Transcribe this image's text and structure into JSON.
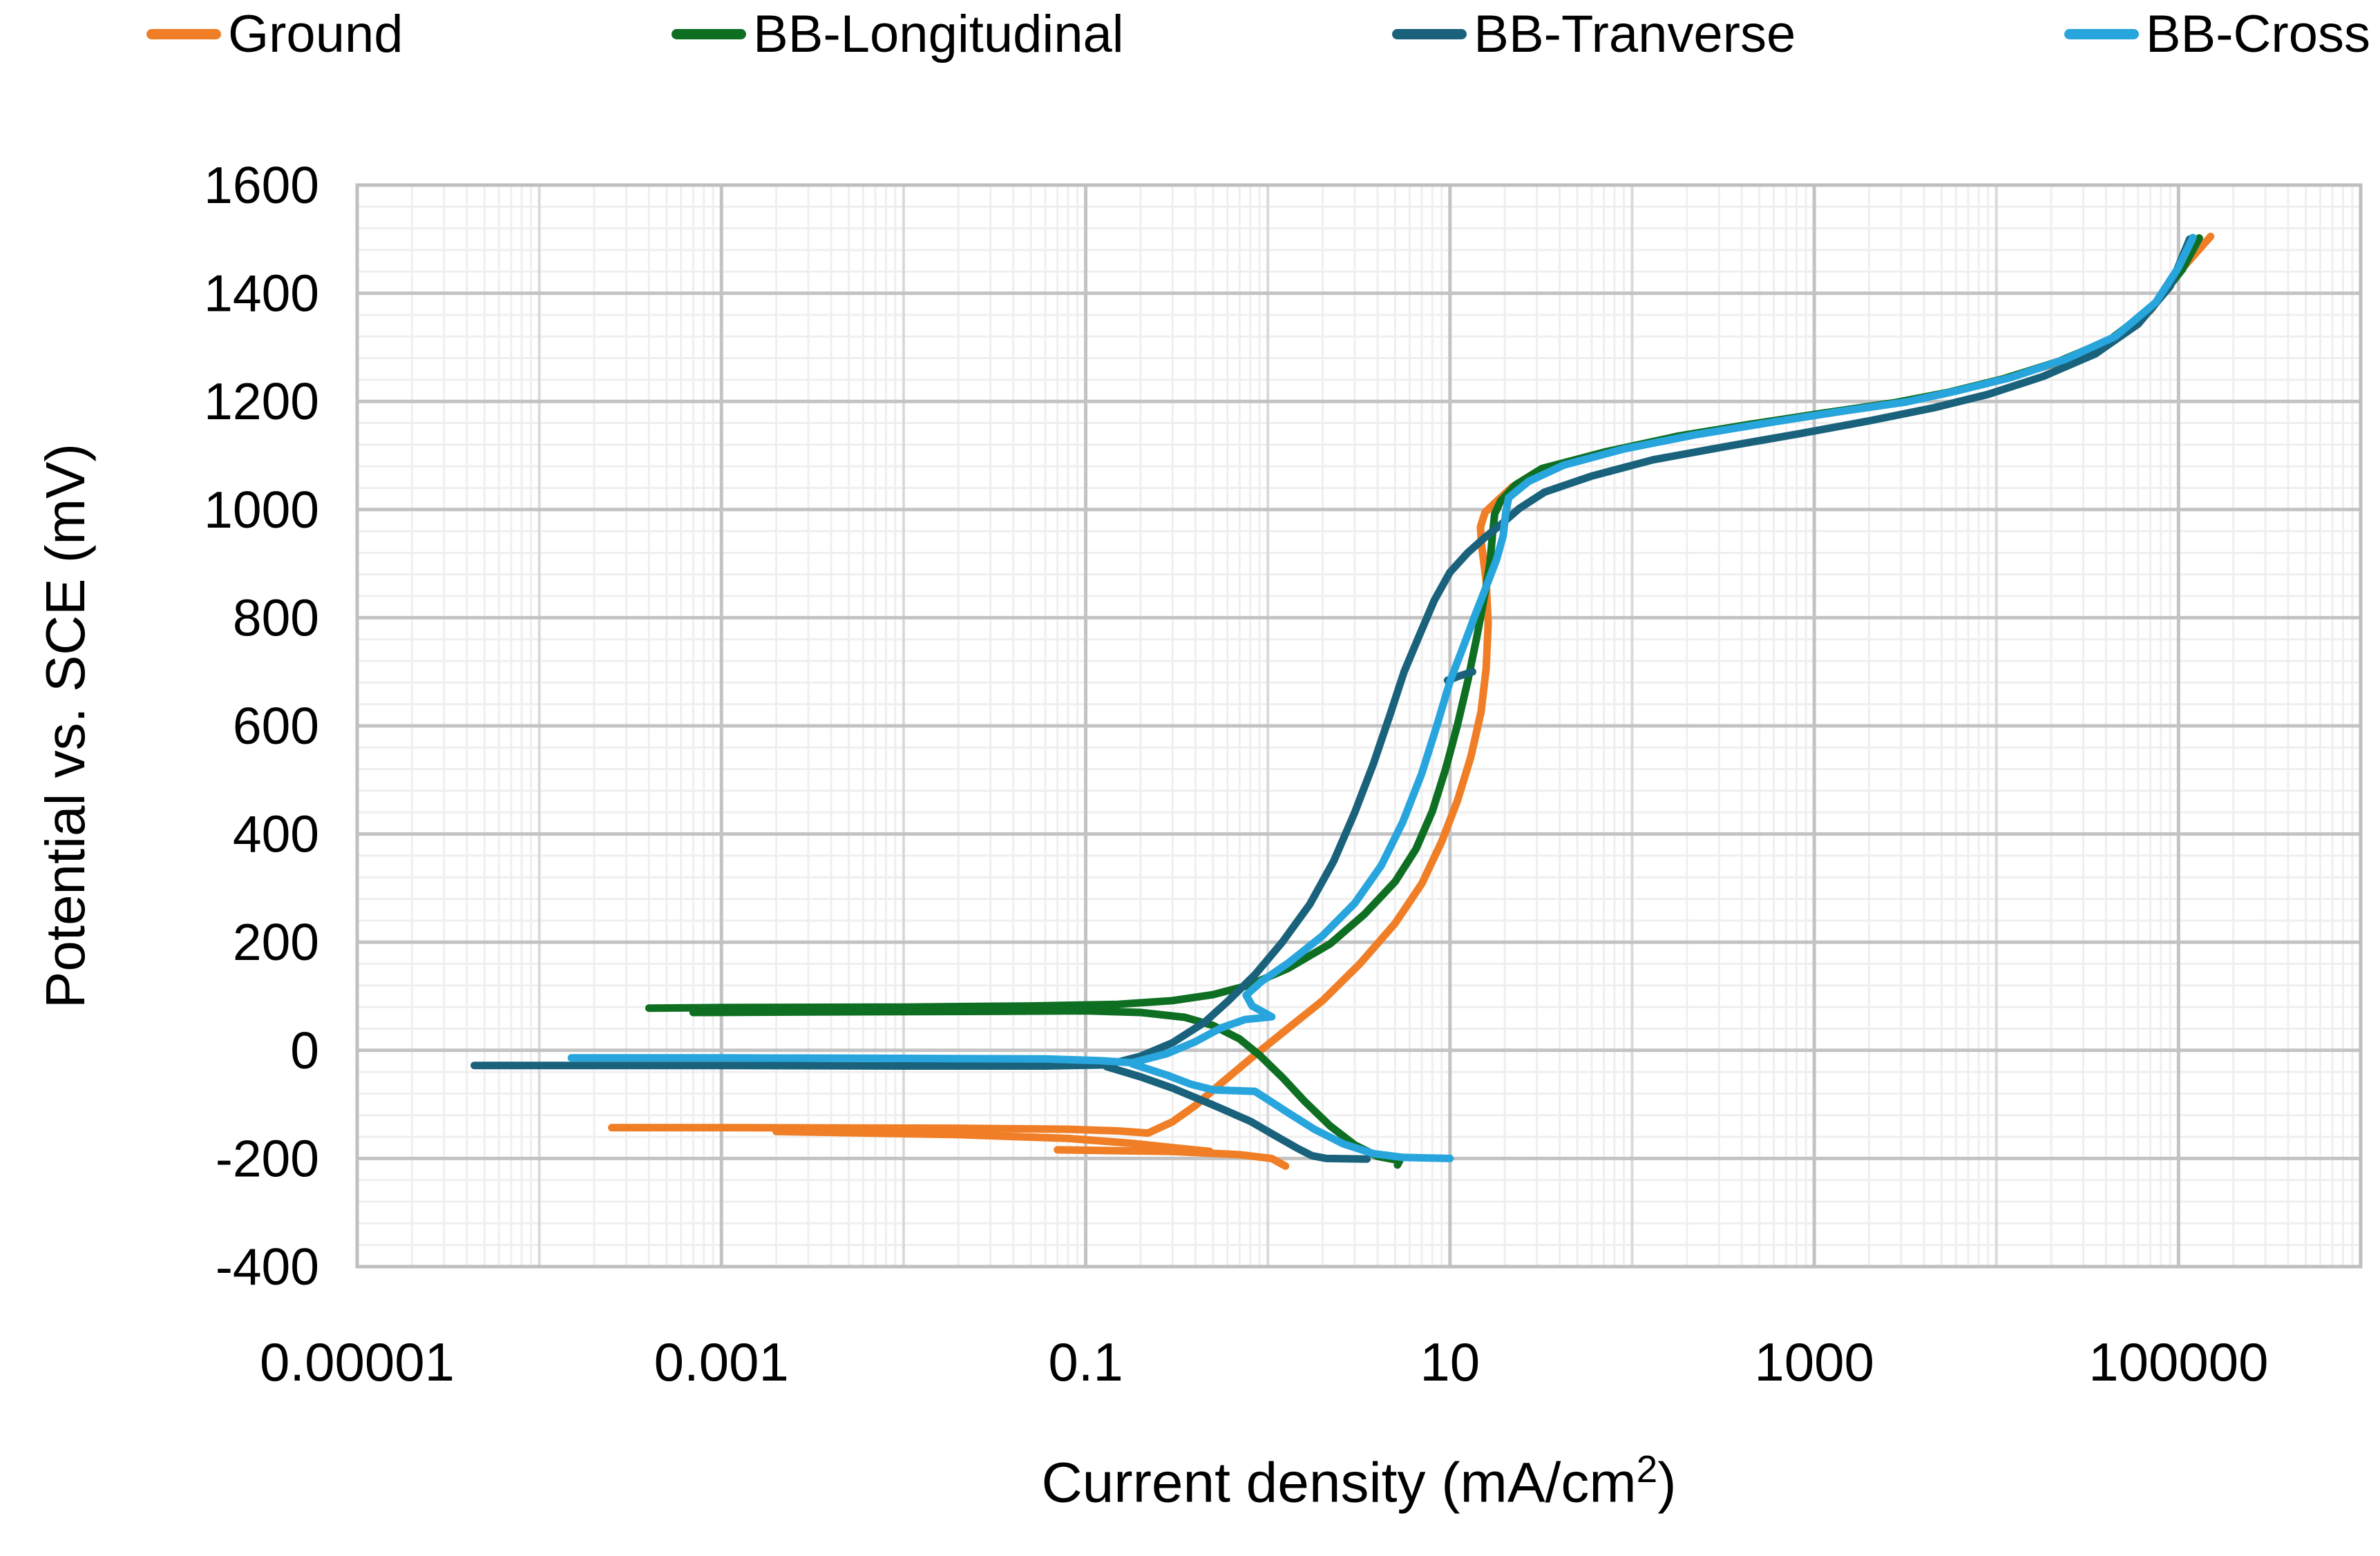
{
  "legend": {
    "items": [
      {
        "label": "Ground",
        "color": "#F07E26"
      },
      {
        "label": "BB-Longitudinal",
        "color": "#0E6F22"
      },
      {
        "label": "BB-Tranverse",
        "color": "#1A627C"
      },
      {
        "label": "BB-Cross",
        "color": "#27A5DC"
      }
    ]
  },
  "axes": {
    "y_title": "Potential vs. SCE (mV)",
    "x_title_main": "Current density (mA/cm",
    "x_title_sup": "2",
    "x_title_close": ")"
  },
  "chart_data": {
    "type": "line",
    "title": "",
    "xlabel": "Current density (mA/cm2)",
    "ylabel": "Potential vs. SCE (mV)",
    "x_axis": {
      "scale": "log",
      "min": 1e-05,
      "max": 1000000.0,
      "tick_values": [
        1e-05,
        0.001,
        0.1,
        10,
        1000,
        100000
      ],
      "tick_labels": [
        "0.00001",
        "0.001",
        "0.1",
        "10",
        "1000",
        "100000"
      ]
    },
    "y_axis": {
      "min": -400,
      "max": 1600,
      "major": 200,
      "minor": 40,
      "tick_labels": [
        "1600",
        "1400",
        "1200",
        "1000",
        "800",
        "600",
        "400",
        "200",
        "0",
        "-200",
        "-400"
      ]
    },
    "grid": {
      "major_color": "#C3C3C3",
      "mid_color": "#D9D9D9",
      "minor_color": "#EFEFEF",
      "border_color": "#BFBFBF"
    },
    "legend_position": "top",
    "series": [
      {
        "name": "Ground",
        "color": "#F07E26",
        "paths": [
          [
            [
              0.00025,
              -143
            ],
            [
              0.001,
              -143
            ],
            [
              0.02,
              -144
            ],
            [
              0.08,
              -146
            ],
            [
              0.15,
              -149
            ],
            [
              0.22,
              -153
            ],
            [
              0.3,
              -132
            ],
            [
              0.4,
              -102
            ],
            [
              0.55,
              -62
            ],
            [
              0.8,
              -16
            ],
            [
              1.2,
              32
            ],
            [
              2,
              92
            ],
            [
              3.2,
              160
            ],
            [
              5,
              235
            ],
            [
              7,
              308
            ],
            [
              9,
              386
            ],
            [
              11,
              462
            ],
            [
              13,
              542
            ],
            [
              14.8,
              625
            ],
            [
              15.8,
              706
            ],
            [
              16.2,
              790
            ],
            [
              15.8,
              868
            ],
            [
              14.9,
              935
            ],
            [
              14.7,
              968
            ],
            [
              15.6,
              995
            ],
            [
              18,
              1015
            ],
            [
              22,
              1042
            ],
            [
              30,
              1070
            ],
            [
              60,
              1100
            ],
            [
              150,
              1130
            ],
            [
              400,
              1154
            ],
            [
              1000,
              1174
            ],
            [
              2500,
              1194
            ],
            [
              5000,
              1213
            ],
            [
              10000,
              1238
            ],
            [
              20000,
              1268
            ],
            [
              40000,
              1308
            ],
            [
              70000,
              1368
            ],
            [
              100000,
              1438
            ],
            [
              150000,
              1505
            ]
          ],
          [
            [
              0.002,
              -150
            ],
            [
              0.02,
              -156
            ],
            [
              0.08,
              -163
            ],
            [
              0.18,
              -172
            ],
            [
              0.32,
              -181
            ],
            [
              0.48,
              -187
            ]
          ],
          [
            [
              0.07,
              -184
            ],
            [
              0.3,
              -187
            ],
            [
              0.7,
              -193
            ],
            [
              1.05,
              -200
            ],
            [
              1.25,
              -214
            ]
          ]
        ]
      },
      {
        "name": "BB-Longitudinal",
        "color": "#0E6F22",
        "paths": [
          [
            [
              0.0004,
              78
            ],
            [
              0.001,
              79
            ],
            [
              0.01,
              80
            ],
            [
              0.05,
              82
            ],
            [
              0.15,
              85
            ],
            [
              0.3,
              92
            ],
            [
              0.5,
              103
            ],
            [
              0.8,
              121
            ],
            [
              1.3,
              152
            ],
            [
              2.2,
              197
            ],
            [
              3.4,
              252
            ],
            [
              5,
              312
            ],
            [
              6.5,
              372
            ],
            [
              8,
              442
            ],
            [
              9.5,
              522
            ],
            [
              11,
              602
            ],
            [
              12.5,
              682
            ],
            [
              14,
              762
            ],
            [
              15.5,
              842
            ],
            [
              16.6,
              902
            ],
            [
              17.1,
              952
            ],
            [
              17.6,
              992
            ],
            [
              19,
              1016
            ],
            [
              23,
              1046
            ],
            [
              32,
              1076
            ],
            [
              70,
              1106
            ],
            [
              180,
              1136
            ],
            [
              450,
              1158
            ],
            [
              1100,
              1178
            ],
            [
              2800,
              1198
            ],
            [
              5500,
              1217
            ],
            [
              11000,
              1242
            ],
            [
              22000,
              1274
            ],
            [
              42000,
              1314
            ],
            [
              72000,
              1374
            ],
            [
              105000,
              1444
            ],
            [
              130000,
              1502
            ]
          ],
          [
            [
              0.0007,
              70
            ],
            [
              0.003,
              71
            ],
            [
              0.03,
              72
            ],
            [
              0.1,
              73
            ],
            [
              0.2,
              70
            ],
            [
              0.35,
              61
            ],
            [
              0.5,
              46
            ],
            [
              0.7,
              21
            ],
            [
              0.9,
              -9
            ],
            [
              1.2,
              -50
            ],
            [
              1.6,
              -95
            ],
            [
              2.2,
              -140
            ],
            [
              3,
              -175
            ],
            [
              4,
              -196
            ],
            [
              5.3,
              -204
            ],
            [
              5.15,
              -212
            ]
          ]
        ]
      },
      {
        "name": "BB-Tranverse",
        "color": "#1A627C",
        "paths": [
          [
            [
              4.4e-05,
              -28
            ],
            [
              0.001,
              -28
            ],
            [
              0.01,
              -29
            ],
            [
              0.06,
              -29
            ],
            [
              0.13,
              -27
            ],
            [
              0.2,
              -11
            ],
            [
              0.3,
              14
            ],
            [
              0.45,
              52
            ],
            [
              0.6,
              90
            ],
            [
              0.85,
              140
            ],
            [
              1.2,
              200
            ],
            [
              1.7,
              270
            ],
            [
              2.3,
              350
            ],
            [
              3,
              440
            ],
            [
              3.8,
              530
            ],
            [
              4.7,
              622
            ],
            [
              5.6,
              700
            ],
            [
              6.8,
              768
            ],
            [
              8.2,
              832
            ],
            [
              10,
              884
            ],
            [
              12.5,
              920
            ],
            [
              15.5,
              948
            ],
            [
              19,
              972
            ],
            [
              24,
              1002
            ],
            [
              33,
              1032
            ],
            [
              60,
              1062
            ],
            [
              130,
              1092
            ],
            [
              320,
              1116
            ],
            [
              820,
              1140
            ],
            [
              2000,
              1164
            ],
            [
              4500,
              1188
            ],
            [
              9000,
              1213
            ],
            [
              18000,
              1246
            ],
            [
              35000,
              1288
            ],
            [
              60000,
              1343
            ],
            [
              90000,
              1413
            ],
            [
              115000,
              1500
            ]
          ],
          [
            [
              0.13,
              -30
            ],
            [
              0.2,
              -49
            ],
            [
              0.3,
              -70
            ],
            [
              0.5,
              -101
            ],
            [
              0.8,
              -131
            ],
            [
              1.1,
              -158
            ],
            [
              1.45,
              -181
            ],
            [
              1.75,
              -195
            ],
            [
              2.1,
              -200
            ],
            [
              3.5,
              -201
            ]
          ],
          [
            [
              13.3,
              700
            ],
            [
              11,
              691
            ],
            [
              9.7,
              684
            ]
          ]
        ]
      },
      {
        "name": "BB-Cross",
        "color": "#27A5DC",
        "paths": [
          [
            [
              0.00015,
              -14
            ],
            [
              0.001,
              -14
            ],
            [
              0.01,
              -15
            ],
            [
              0.06,
              -16
            ],
            [
              0.12,
              -19
            ],
            [
              0.18,
              -23
            ],
            [
              0.28,
              -6
            ],
            [
              0.4,
              16
            ],
            [
              0.55,
              41
            ],
            [
              0.75,
              57
            ],
            [
              1.05,
              62
            ],
            [
              0.82,
              82
            ],
            [
              0.76,
              102
            ],
            [
              0.92,
              127
            ],
            [
              1.3,
              162
            ],
            [
              2,
              212
            ],
            [
              3,
              272
            ],
            [
              4.2,
              342
            ],
            [
              5.5,
              422
            ],
            [
              7,
              512
            ],
            [
              8.5,
              602
            ],
            [
              10,
              682
            ],
            [
              12,
              752
            ],
            [
              14,
              812
            ],
            [
              16,
              862
            ],
            [
              18,
              907
            ],
            [
              19.6,
              952
            ],
            [
              20.2,
              992
            ],
            [
              21,
              1022
            ],
            [
              27,
              1052
            ],
            [
              42,
              1082
            ],
            [
              90,
              1112
            ],
            [
              220,
              1138
            ],
            [
              550,
              1160
            ],
            [
              1300,
              1180
            ],
            [
              3200,
              1199
            ],
            [
              6000,
              1219
            ],
            [
              12000,
              1244
            ],
            [
              24000,
              1278
            ],
            [
              45000,
              1320
            ],
            [
              75000,
              1383
            ],
            [
              100000,
              1448
            ],
            [
              120000,
              1503
            ]
          ],
          [
            [
              0.18,
              -25
            ],
            [
              0.28,
              -46
            ],
            [
              0.38,
              -63
            ],
            [
              0.5,
              -73
            ],
            [
              0.85,
              -76
            ],
            [
              1.0,
              -91
            ],
            [
              1.3,
              -116
            ],
            [
              1.8,
              -146
            ],
            [
              2.6,
              -173
            ],
            [
              3.8,
              -191
            ],
            [
              5.5,
              -198
            ],
            [
              10,
              -200
            ]
          ]
        ]
      }
    ]
  }
}
